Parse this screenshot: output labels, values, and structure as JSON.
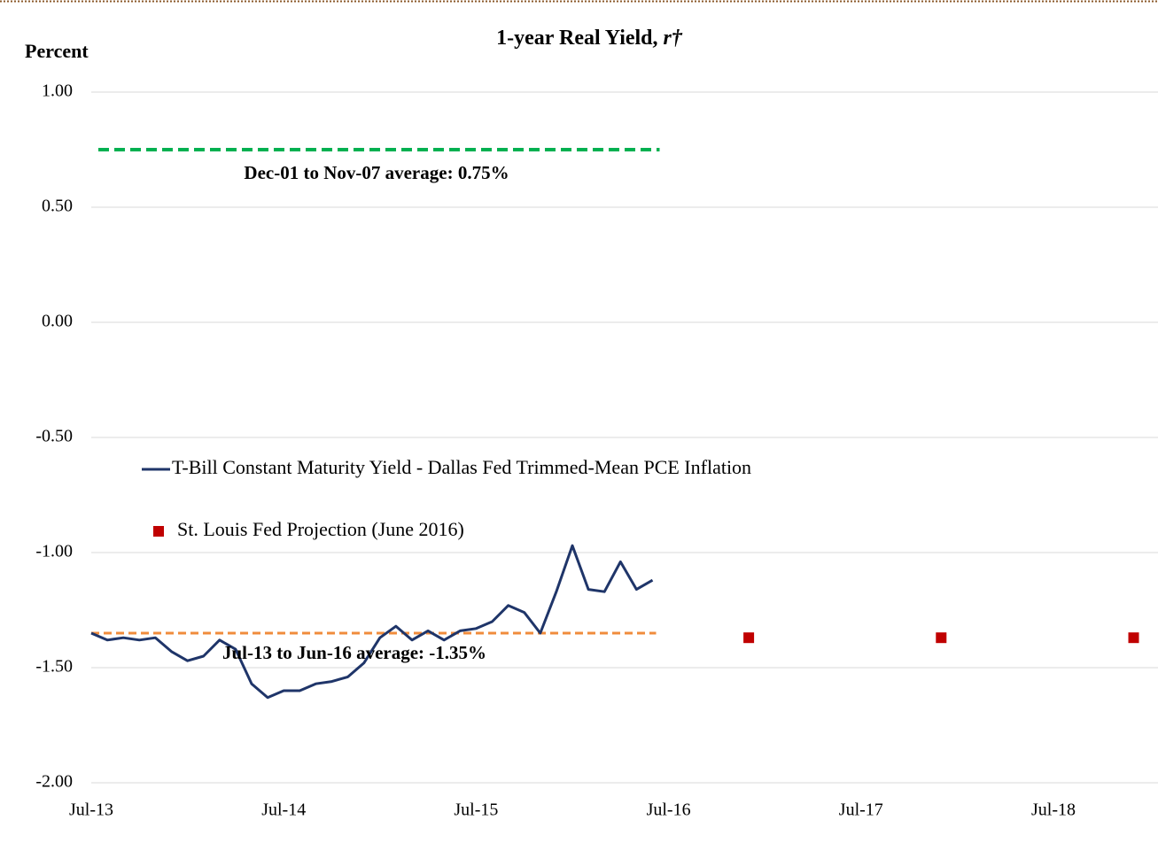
{
  "chart_data": {
    "type": "line",
    "title": "1-year Real Yield,",
    "title_symbol": "r†",
    "y_label": "Percent",
    "categories": [
      "Jul-13",
      null,
      null,
      null,
      null,
      null,
      null,
      null,
      null,
      null,
      null,
      null,
      "Jul-14",
      null,
      null,
      null,
      null,
      null,
      null,
      null,
      null,
      null,
      null,
      null,
      "Jul-15",
      null,
      null,
      null,
      null,
      null,
      null,
      null,
      null,
      null,
      null,
      null,
      "Jul-16",
      null,
      null,
      null,
      null,
      null,
      null,
      null,
      null,
      null,
      null,
      null,
      "Jul-17",
      null,
      null,
      null,
      null,
      null,
      null,
      null,
      null,
      null,
      null,
      null,
      "Jul-18",
      null,
      null,
      null,
      null,
      null
    ],
    "series": [
      {
        "name": "T-Bill Constant Maturity Yield - Dallas Fed Trimmed-Mean PCE Inflation",
        "color": "#1f3569",
        "kind": "line",
        "values": [
          -1.35,
          -1.38,
          -1.37,
          -1.38,
          -1.37,
          -1.43,
          -1.47,
          -1.45,
          -1.38,
          -1.42,
          -1.57,
          -1.63,
          -1.6,
          -1.6,
          -1.57,
          -1.56,
          -1.54,
          -1.48,
          -1.37,
          -1.32,
          -1.38,
          -1.34,
          -1.38,
          -1.34,
          -1.33,
          -1.3,
          -1.23,
          -1.26,
          -1.35,
          -1.17,
          -0.97,
          -1.16,
          -1.17,
          -1.04,
          -1.16,
          -1.12,
          null,
          null,
          null,
          null,
          null,
          null,
          null,
          null,
          null,
          null,
          null,
          null,
          null,
          null,
          null,
          null,
          null,
          null,
          null,
          null,
          null,
          null,
          null,
          null,
          null,
          null,
          null,
          null,
          null,
          null
        ]
      },
      {
        "name": "St. Louis Fed Projection (June 2016)",
        "color": "#c00000",
        "kind": "marker",
        "values": [
          null,
          null,
          null,
          null,
          null,
          null,
          null,
          null,
          null,
          null,
          null,
          null,
          null,
          null,
          null,
          null,
          null,
          null,
          null,
          null,
          null,
          null,
          null,
          null,
          null,
          null,
          null,
          null,
          null,
          null,
          null,
          null,
          null,
          null,
          null,
          null,
          null,
          null,
          null,
          null,
          null,
          -1.37,
          null,
          null,
          null,
          null,
          null,
          null,
          null,
          null,
          null,
          null,
          null,
          -1.37,
          null,
          null,
          null,
          null,
          null,
          null,
          null,
          null,
          null,
          null,
          null,
          -1.37
        ]
      }
    ],
    "reference_lines": [
      {
        "label": "Dec-01 to Nov-07 average: 0.75%",
        "value": 0.75,
        "color": "#00b050"
      },
      {
        "label": "Jul-13 to Jun-16 average: -1.35%",
        "value": -1.35,
        "color": "#f08c3c"
      }
    ],
    "ylim": [
      -2,
      1
    ],
    "yticks": [
      {
        "value": -2,
        "label": "-2.00"
      },
      {
        "value": -1.5,
        "label": "-1.50"
      },
      {
        "value": -1,
        "label": "-1.00"
      },
      {
        "value": -0.5,
        "label": "-0.50"
      },
      {
        "value": 0,
        "label": "0.00"
      },
      {
        "value": 0.5,
        "label": "0.50"
      },
      {
        "value": 1,
        "label": "1.00"
      }
    ],
    "grid": true,
    "legend": "left"
  }
}
